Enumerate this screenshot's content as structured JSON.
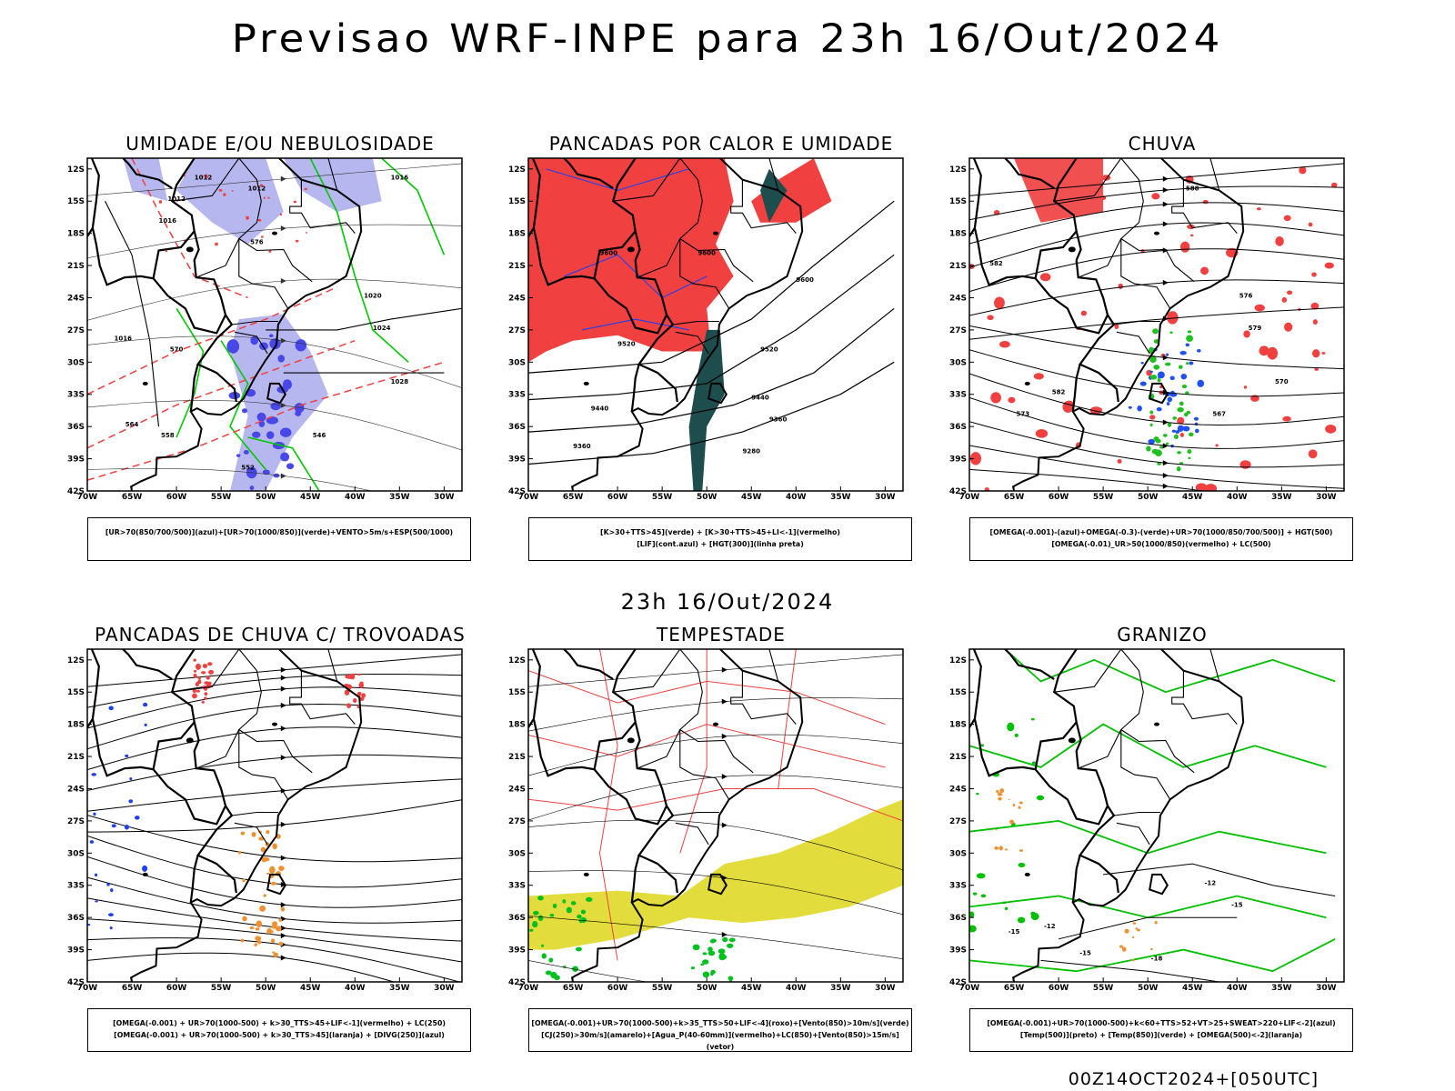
{
  "title": "Previsao WRF-INPE  para 23h 16/Out/2024",
  "mid_title": "23h 16/Out/2024",
  "footer": "00Z14OCT2024+[050UTC]",
  "lat_labels": [
    "12S",
    "15S",
    "18S",
    "21S",
    "24S",
    "27S",
    "30S",
    "33S",
    "36S",
    "39S",
    "42S"
  ],
  "lon_labels": [
    "70W",
    "65W",
    "60W",
    "55W",
    "50W",
    "45W",
    "40W",
    "35W",
    "30W"
  ],
  "panels": [
    {
      "id": "umidade",
      "title": "UMIDADE E/OU NEBULOSIDADE",
      "legend": [
        "[UR>70(850/700/500)](azul)+[UR>70(1000/850)](verde)+VENTO>5m/s+ESP(500/1000)"
      ],
      "contour_labels": [
        "1012",
        "1012",
        "1012",
        "1016",
        "1016",
        "1016",
        "1020",
        "1024",
        "1028",
        "576",
        "570",
        "564",
        "558",
        "552",
        "546"
      ]
    },
    {
      "id": "pancadas-calor",
      "title": "PANCADAS POR CALOR E UMIDADE",
      "legend": [
        "[K>30+TTS>45](verde) + [K>30+TTS>45+LI<-1](vermelho)",
        "[LIF](cont.azul) + [HGT(300)](linha preta)"
      ],
      "contour_labels": [
        "9600",
        "9600",
        "9600",
        "9520",
        "9520",
        "9440",
        "9440",
        "9360",
        "9360",
        "9280"
      ]
    },
    {
      "id": "chuva",
      "title": "CHUVA",
      "legend": [
        "[OMEGA(-0.001)-(azul)+OMEGA(-0.3)-(verde)+UR>70(1000/850/700/500)] + HGT(500)",
        "[OMEGA(-0.01)_UR>50(1000/850)(vermelho) + LC(500)"
      ],
      "contour_labels": [
        "588",
        "582",
        "576",
        "579",
        "573",
        "570",
        "582",
        "567"
      ]
    },
    {
      "id": "pancadas-trovoadas",
      "title": "PANCADAS DE CHUVA C/ TROVOADAS",
      "legend": [
        "[OMEGA(-0.001) + UR>70(1000-500) + k>30_TTS>45+LIF<-1](vermelho) + LC(250)",
        "[OMEGA(-0.001) + UR>70(1000-500) + k>30_TTS>45](laranja) + [DIVG(250)](azul)"
      ],
      "contour_labels": []
    },
    {
      "id": "tempestade",
      "title": "TEMPESTADE",
      "legend": [
        "[OMEGA(-0.001)+UR>70(1000-500)+k>35_TTS>50+LIF<-4](roxo)+[Vento(850)>10m/s](verde)",
        "[CJ(250)>30m/s](amarelo)+[Agua_P(40-60mm)](vermelho)+LC(850)+[Vento(850)>15m/s](vetor)"
      ],
      "contour_labels": []
    },
    {
      "id": "granizo",
      "title": "GRANIZO",
      "legend": [
        "[OMEGA(-0.001)+UR>70(1000-500)+k<60+TTS>52+VT>25+SWEAT>220+LIF<-2](azul)",
        "[Temp(500)](preto) + [Temp(850)](verde) + [OMEGA(500)<-2](laranja)"
      ],
      "contour_labels": [
        "-12",
        "-15",
        "-15",
        "-18",
        "-12",
        "-15"
      ]
    }
  ],
  "colors": {
    "umidade_alta": "#b7b7f0",
    "umidade_baixa": "#00c800",
    "vermelho": "#f04040",
    "verde_escuro": "#1e4d4d",
    "amarelo": "#e2dc3c",
    "laranja": "#f09030",
    "azul": "#2040f0"
  }
}
